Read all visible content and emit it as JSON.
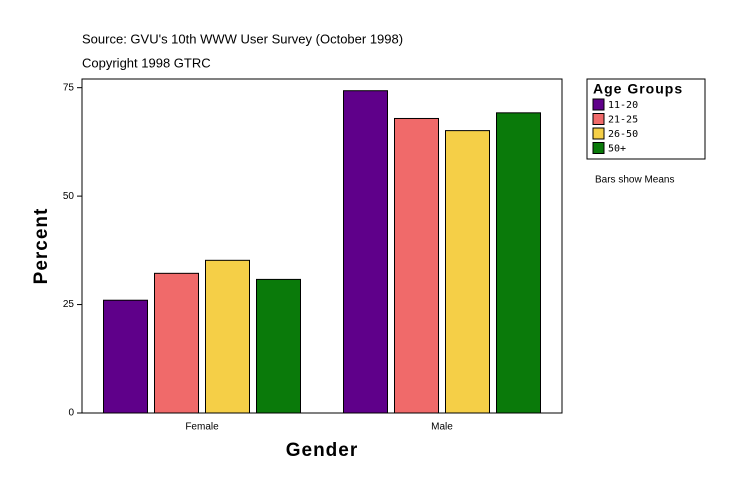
{
  "chart_data": {
    "type": "bar",
    "title": "Source: GVU's 10th WWW User Survey (October 1998)",
    "subtitle": "Copyright 1998 GTRC",
    "note": "Bars show Means",
    "x_label": "Gender",
    "y_label": "Percent",
    "legend_title": "Age Groups",
    "legend": "right",
    "categories": [
      "Female",
      "Male"
    ],
    "series": [
      {
        "name": "11-20",
        "color": "#5f008a",
        "values": [
          26.0,
          74.3
        ]
      },
      {
        "name": "21-25",
        "color": "#f06a6a",
        "values": [
          32.2,
          67.9
        ]
      },
      {
        "name": "26-50",
        "color": "#f5cf47",
        "values": [
          35.2,
          65.1
        ]
      },
      {
        "name": "50+",
        "color": "#0a7a0a",
        "values": [
          30.8,
          69.2
        ]
      }
    ],
    "ylim": [
      0,
      77
    ],
    "yticks": [
      0,
      25,
      50,
      75
    ],
    "grid": false
  }
}
